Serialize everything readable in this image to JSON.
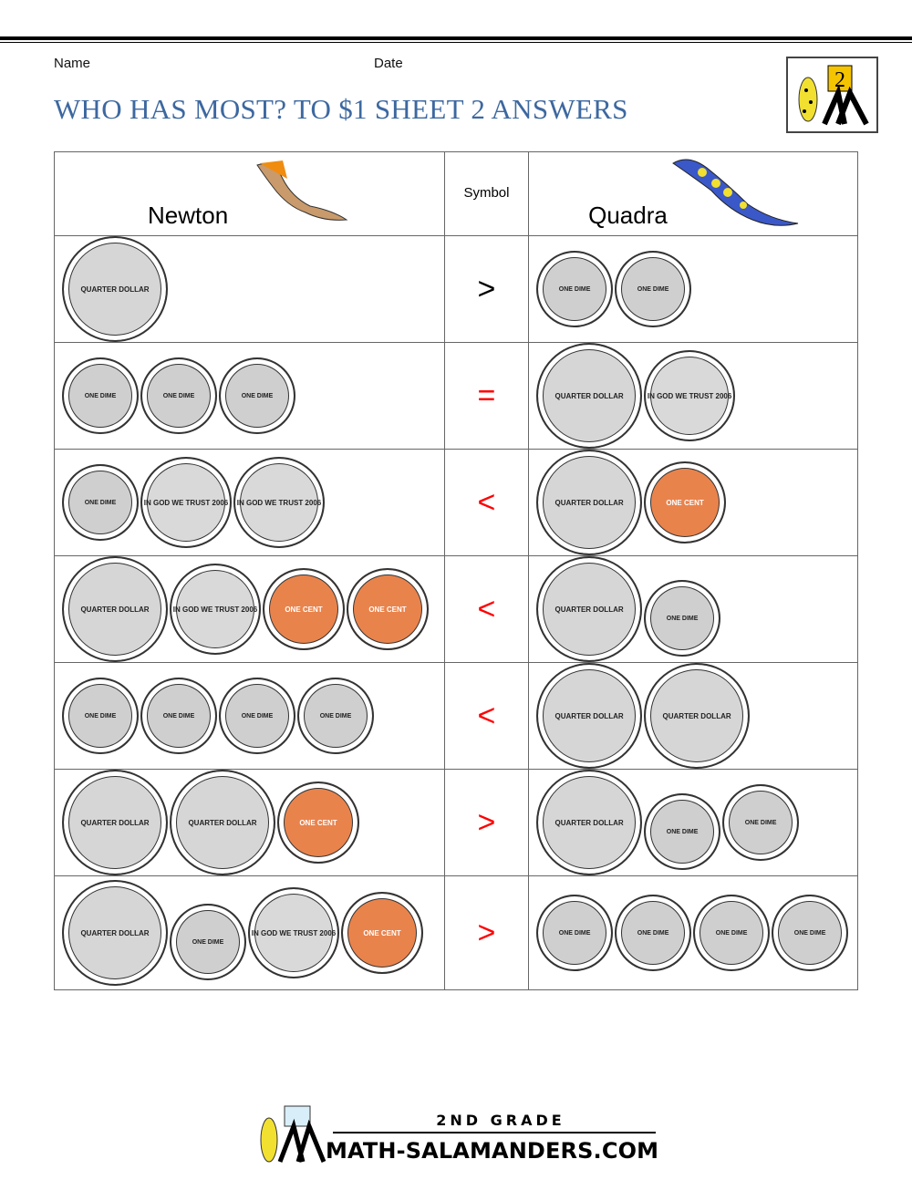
{
  "header": {
    "name_label": "Name",
    "date_label": "Date",
    "title": "WHO HAS MOST? TO $1 SHEET 2 ANSWERS",
    "logo_text": "2"
  },
  "table": {
    "col_left": "Newton",
    "col_symbol": "Symbol",
    "col_right": "Quadra",
    "rows": [
      {
        "left": [
          "quarter"
        ],
        "symbol": ">",
        "right": [
          "dime",
          "dime"
        ]
      },
      {
        "left": [
          "dime",
          "dime",
          "dime"
        ],
        "symbol": "=",
        "right": [
          "quarter",
          "nickel"
        ]
      },
      {
        "left": [
          "dime",
          "nickel",
          "nickel"
        ],
        "symbol": "<",
        "right": [
          "quarter",
          "penny"
        ]
      },
      {
        "left": [
          "quarter",
          "nickel",
          "penny",
          "penny"
        ],
        "symbol": "<",
        "right": [
          "quarter",
          "dime"
        ]
      },
      {
        "left": [
          "dime",
          "dime",
          "dime",
          "dime"
        ],
        "symbol": "<",
        "right": [
          "quarter",
          "quarter"
        ]
      },
      {
        "left": [
          "quarter",
          "quarter",
          "penny"
        ],
        "symbol": ">",
        "right": [
          "quarter",
          "dime",
          "dime"
        ]
      },
      {
        "left": [
          "quarter",
          "dime",
          "nickel",
          "penny"
        ],
        "symbol": ">",
        "right": [
          "dime",
          "dime",
          "dime",
          "dime"
        ]
      }
    ]
  },
  "coin_labels": {
    "quarter": "QUARTER DOLLAR",
    "dime": "ONE DIME",
    "nickel": "IN GOD WE TRUST 2006",
    "penny": "ONE CENT"
  },
  "colors": {
    "title": "#3d68a0",
    "symbol_answer": "#ff0000",
    "symbol_first": "#000000"
  },
  "footer": {
    "grade": "2ND GRADE",
    "site": "MATH-SALAMANDERS.COM"
  }
}
